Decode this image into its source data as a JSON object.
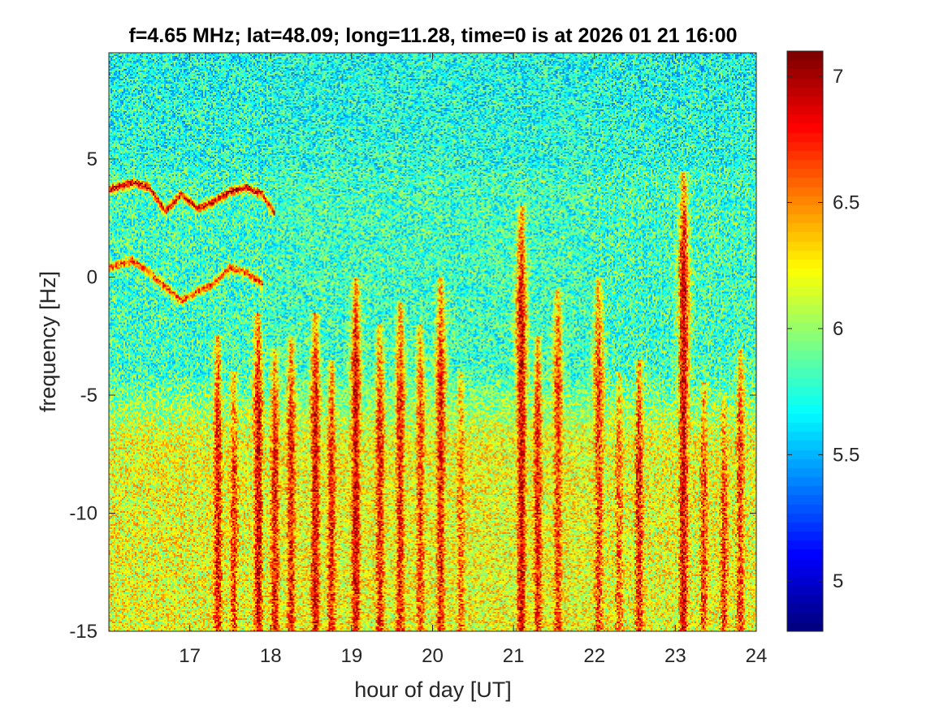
{
  "chart_data": {
    "type": "heatmap",
    "title": "f=4.65 MHz;  lat=48.09; long=11.28, time=0 is at 2026 01 21 16:00",
    "xlabel": "hour of day [UT]",
    "ylabel": "frequency [Hz]",
    "xlim": [
      16,
      24
    ],
    "ylim": [
      -15,
      9.5
    ],
    "xticks": [
      17,
      18,
      19,
      20,
      21,
      22,
      23,
      24
    ],
    "yticks": [
      -15,
      -10,
      -5,
      0,
      5
    ],
    "colorbar": {
      "range": [
        4.8,
        7.1
      ],
      "ticks": [
        5,
        5.5,
        6,
        6.5,
        7
      ],
      "colormap": "jet"
    },
    "background_level": 5.8,
    "noise_amplitude": 0.35,
    "lower_band": {
      "top_hz": -4,
      "level": 6.3
    },
    "spikes": [
      {
        "hour": 17.35,
        "top_hz": -2.5,
        "level": 6.8
      },
      {
        "hour": 17.55,
        "top_hz": -4.0,
        "level": 6.7
      },
      {
        "hour": 17.85,
        "top_hz": -1.5,
        "level": 6.9
      },
      {
        "hour": 18.05,
        "top_hz": -3.0,
        "level": 6.8
      },
      {
        "hour": 18.25,
        "top_hz": -2.5,
        "level": 6.8
      },
      {
        "hour": 18.55,
        "top_hz": -1.5,
        "level": 6.9
      },
      {
        "hour": 18.75,
        "top_hz": -3.5,
        "level": 6.8
      },
      {
        "hour": 19.05,
        "top_hz": 0.0,
        "level": 6.9
      },
      {
        "hour": 19.35,
        "top_hz": -2.0,
        "level": 6.8
      },
      {
        "hour": 19.6,
        "top_hz": -1.0,
        "level": 6.8
      },
      {
        "hour": 19.85,
        "top_hz": -2.0,
        "level": 6.7
      },
      {
        "hour": 20.1,
        "top_hz": 0.0,
        "level": 6.8
      },
      {
        "hour": 20.35,
        "top_hz": -4.0,
        "level": 6.6
      },
      {
        "hour": 21.1,
        "top_hz": 3.0,
        "level": 6.9
      },
      {
        "hour": 21.3,
        "top_hz": -2.5,
        "level": 6.8
      },
      {
        "hour": 21.55,
        "top_hz": -0.5,
        "level": 6.7
      },
      {
        "hour": 22.05,
        "top_hz": 0.0,
        "level": 6.7
      },
      {
        "hour": 22.3,
        "top_hz": -4.0,
        "level": 6.6
      },
      {
        "hour": 22.55,
        "top_hz": -3.5,
        "level": 6.8
      },
      {
        "hour": 23.1,
        "top_hz": 4.5,
        "level": 6.9
      },
      {
        "hour": 23.35,
        "top_hz": -4.5,
        "level": 6.7
      },
      {
        "hour": 23.6,
        "top_hz": -5.0,
        "level": 6.7
      },
      {
        "hour": 23.8,
        "top_hz": -3.0,
        "level": 6.7
      }
    ],
    "traces": [
      {
        "hours": [
          16.0,
          16.3,
          16.5,
          16.7,
          16.9,
          17.1,
          17.3,
          17.5,
          17.7,
          17.9,
          18.05
        ],
        "hz": [
          3.7,
          4.0,
          3.8,
          2.8,
          3.5,
          2.9,
          3.2,
          3.6,
          3.8,
          3.5,
          2.7
        ],
        "level": 6.9
      },
      {
        "hours": [
          16.0,
          16.3,
          16.5,
          16.7,
          16.9,
          17.1,
          17.3,
          17.5,
          17.7,
          17.9
        ],
        "hz": [
          0.4,
          0.7,
          0.2,
          -0.4,
          -1.0,
          -0.6,
          -0.3,
          0.4,
          0.2,
          -0.3
        ],
        "level": 6.7
      }
    ]
  }
}
